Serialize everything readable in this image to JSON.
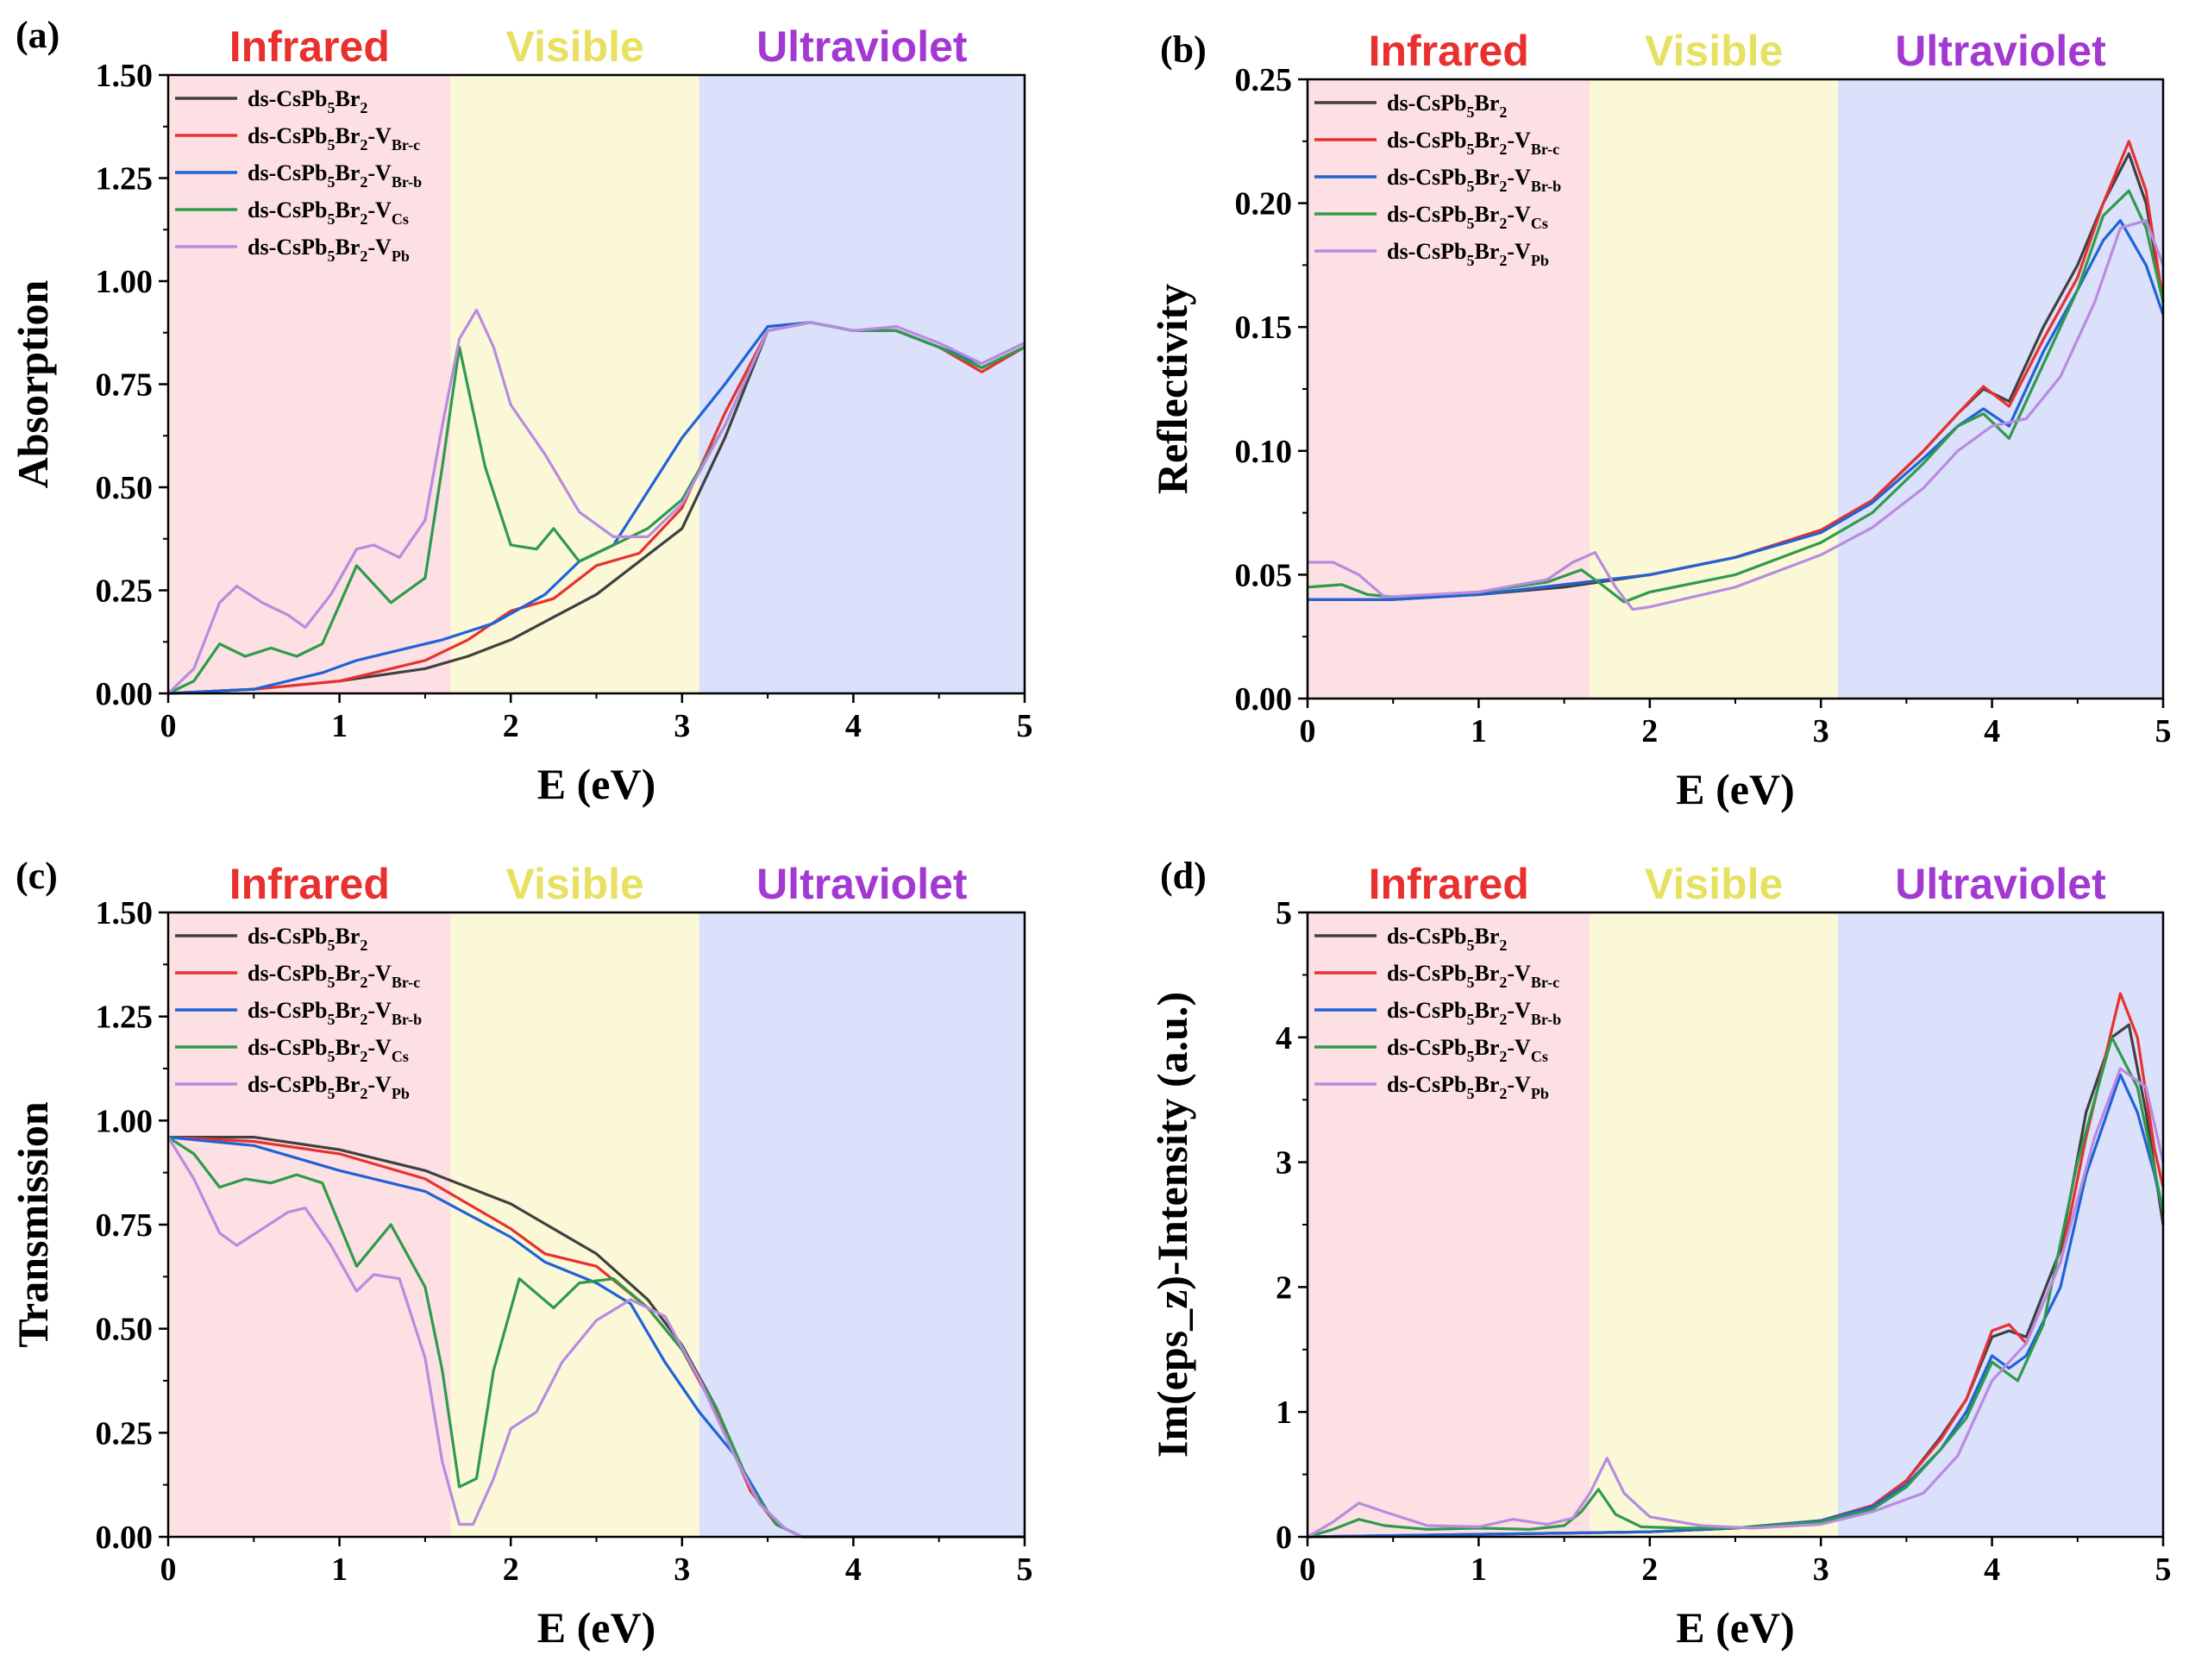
{
  "legend_entries": [
    {
      "base": "ds-CsPb",
      "s1": "5",
      "mid": "Br",
      "s2": "2",
      "dash": "",
      "v": "",
      "vsub": "",
      "color": "#404040"
    },
    {
      "base": "ds-CsPb",
      "s1": "5",
      "mid": "Br",
      "s2": "2",
      "dash": "-",
      "v": "V",
      "vsub": "Br-c",
      "color": "#e8312f"
    },
    {
      "base": "ds-CsPb",
      "s1": "5",
      "mid": "Br",
      "s2": "2",
      "dash": "-",
      "v": "V",
      "vsub": "Br-b",
      "color": "#1f63d6"
    },
    {
      "base": "ds-CsPb",
      "s1": "5",
      "mid": "Br",
      "s2": "2",
      "dash": "-",
      "v": "V",
      "vsub": "Cs",
      "color": "#2f9a4c"
    },
    {
      "base": "ds-CsPb",
      "s1": "5",
      "mid": "Br",
      "s2": "2",
      "dash": "-",
      "v": "V",
      "vsub": "Pb",
      "color": "#b98be0"
    }
  ],
  "regions": [
    {
      "label": "Infrared",
      "from": 0,
      "to": 1.65,
      "fill": "#fde0e3",
      "text_color": "#e8312f"
    },
    {
      "label": "Visible",
      "from": 1.65,
      "to": 3.1,
      "fill": "#fbf8d8",
      "text_color": "#e8e060"
    },
    {
      "label": "Ultraviolet",
      "from": 3.1,
      "to": 5,
      "fill": "#dbe0fb",
      "text_color": "#a338d2"
    }
  ],
  "chart_data": [
    {
      "panel": "(a)",
      "type": "line",
      "xlabel": "E (eV)",
      "ylabel": "Absorption",
      "xlim": [
        0,
        5
      ],
      "ylim": [
        0,
        1.5
      ],
      "xticks": [
        0,
        1,
        2,
        3,
        4,
        5
      ],
      "yticks": [
        "0.00",
        "0.25",
        "0.50",
        "0.75",
        "1.00",
        "1.25",
        "1.50"
      ],
      "legend_position": "top-left",
      "series": [
        {
          "x": [
            0,
            0.5,
            1.0,
            1.5,
            1.75,
            2.0,
            2.5,
            3.0,
            3.25,
            3.5,
            3.75,
            4.0,
            4.25,
            4.5,
            4.75,
            5.0
          ],
          "y": [
            0,
            0.01,
            0.03,
            0.06,
            0.09,
            0.13,
            0.24,
            0.4,
            0.62,
            0.88,
            0.9,
            0.88,
            0.88,
            0.84,
            0.79,
            0.84
          ]
        },
        {
          "x": [
            0,
            0.5,
            1.0,
            1.5,
            1.75,
            2.0,
            2.25,
            2.5,
            2.75,
            3.0,
            3.25,
            3.5,
            3.75,
            4.0,
            4.25,
            4.5,
            4.75,
            5.0
          ],
          "y": [
            0,
            0.01,
            0.03,
            0.08,
            0.13,
            0.2,
            0.23,
            0.31,
            0.34,
            0.45,
            0.68,
            0.88,
            0.9,
            0.88,
            0.88,
            0.84,
            0.78,
            0.84
          ]
        },
        {
          "x": [
            0,
            0.5,
            0.9,
            1.1,
            1.3,
            1.6,
            1.9,
            2.2,
            2.4,
            2.6,
            2.8,
            3.0,
            3.25,
            3.5,
            3.75,
            4.0,
            4.25,
            4.5,
            4.75,
            5.0
          ],
          "y": [
            0,
            0.01,
            0.05,
            0.08,
            0.1,
            0.13,
            0.17,
            0.24,
            0.32,
            0.36,
            0.49,
            0.62,
            0.75,
            0.89,
            0.9,
            0.88,
            0.88,
            0.84,
            0.8,
            0.85
          ]
        },
        {
          "x": [
            0,
            0.15,
            0.3,
            0.45,
            0.6,
            0.75,
            0.9,
            1.1,
            1.3,
            1.5,
            1.6,
            1.7,
            1.85,
            2.0,
            2.15,
            2.25,
            2.4,
            2.6,
            2.8,
            3.0,
            3.25,
            3.5,
            3.75,
            4.0,
            4.25,
            4.5,
            4.75,
            5.0
          ],
          "y": [
            0,
            0.03,
            0.12,
            0.09,
            0.11,
            0.09,
            0.12,
            0.31,
            0.22,
            0.28,
            0.55,
            0.84,
            0.55,
            0.36,
            0.35,
            0.4,
            0.32,
            0.36,
            0.4,
            0.47,
            0.65,
            0.88,
            0.9,
            0.88,
            0.88,
            0.84,
            0.79,
            0.84
          ]
        },
        {
          "x": [
            0,
            0.15,
            0.3,
            0.4,
            0.55,
            0.7,
            0.8,
            0.95,
            1.1,
            1.2,
            1.35,
            1.5,
            1.6,
            1.7,
            1.8,
            1.9,
            2.0,
            2.2,
            2.4,
            2.6,
            2.8,
            3.0,
            3.25,
            3.5,
            3.75,
            4.0,
            4.25,
            4.5,
            4.75,
            5.0
          ],
          "y": [
            0,
            0.06,
            0.22,
            0.26,
            0.22,
            0.19,
            0.16,
            0.24,
            0.35,
            0.36,
            0.33,
            0.42,
            0.65,
            0.86,
            0.93,
            0.84,
            0.7,
            0.58,
            0.44,
            0.38,
            0.38,
            0.46,
            0.65,
            0.88,
            0.9,
            0.88,
            0.89,
            0.85,
            0.8,
            0.85
          ]
        }
      ]
    },
    {
      "panel": "(b)",
      "type": "line",
      "xlabel": "E (eV)",
      "ylabel": "Reflectivity",
      "xlim": [
        0,
        5
      ],
      "ylim": [
        0,
        0.25
      ],
      "xticks": [
        0,
        1,
        2,
        3,
        4,
        5
      ],
      "yticks": [
        "0.00",
        "0.05",
        "0.10",
        "0.15",
        "0.20",
        "0.25"
      ],
      "legend_position": "top-left",
      "series": [
        {
          "x": [
            0,
            0.5,
            1.0,
            1.5,
            2.0,
            2.5,
            3.0,
            3.3,
            3.6,
            3.8,
            3.95,
            4.1,
            4.3,
            4.5,
            4.65,
            4.8,
            4.9,
            5.0
          ],
          "y": [
            0.04,
            0.04,
            0.042,
            0.045,
            0.05,
            0.057,
            0.068,
            0.08,
            0.1,
            0.115,
            0.125,
            0.12,
            0.15,
            0.175,
            0.2,
            0.22,
            0.2,
            0.16
          ]
        },
        {
          "x": [
            0,
            0.5,
            1.0,
            1.5,
            2.0,
            2.5,
            3.0,
            3.3,
            3.6,
            3.8,
            3.95,
            4.1,
            4.3,
            4.5,
            4.65,
            4.8,
            4.9,
            5.0
          ],
          "y": [
            0.04,
            0.04,
            0.042,
            0.046,
            0.05,
            0.057,
            0.068,
            0.08,
            0.1,
            0.115,
            0.126,
            0.118,
            0.145,
            0.17,
            0.2,
            0.225,
            0.205,
            0.16
          ]
        },
        {
          "x": [
            0,
            0.5,
            1.0,
            1.5,
            2.0,
            2.5,
            3.0,
            3.3,
            3.6,
            3.8,
            3.95,
            4.1,
            4.3,
            4.5,
            4.65,
            4.75,
            4.9,
            5.0
          ],
          "y": [
            0.04,
            0.04,
            0.042,
            0.046,
            0.05,
            0.057,
            0.067,
            0.079,
            0.097,
            0.11,
            0.117,
            0.11,
            0.14,
            0.165,
            0.185,
            0.193,
            0.175,
            0.155
          ]
        },
        {
          "x": [
            0,
            0.2,
            0.35,
            0.5,
            1.0,
            1.4,
            1.6,
            1.7,
            1.85,
            2.0,
            2.5,
            3.0,
            3.3,
            3.6,
            3.8,
            3.95,
            4.1,
            4.3,
            4.5,
            4.65,
            4.8,
            4.9,
            5.0
          ],
          "y": [
            0.045,
            0.046,
            0.042,
            0.041,
            0.043,
            0.047,
            0.052,
            0.047,
            0.039,
            0.043,
            0.05,
            0.063,
            0.075,
            0.095,
            0.11,
            0.115,
            0.105,
            0.135,
            0.165,
            0.195,
            0.205,
            0.19,
            0.16
          ]
        },
        {
          "x": [
            0,
            0.15,
            0.3,
            0.45,
            1.0,
            1.4,
            1.55,
            1.68,
            1.8,
            1.9,
            2.0,
            2.5,
            3.0,
            3.3,
            3.6,
            3.8,
            4.0,
            4.2,
            4.4,
            4.6,
            4.75,
            4.9,
            5.0
          ],
          "y": [
            0.055,
            0.055,
            0.05,
            0.041,
            0.043,
            0.048,
            0.055,
            0.059,
            0.045,
            0.036,
            0.037,
            0.045,
            0.058,
            0.069,
            0.085,
            0.1,
            0.11,
            0.113,
            0.13,
            0.16,
            0.19,
            0.193,
            0.175
          ]
        }
      ]
    },
    {
      "panel": "(c)",
      "type": "line",
      "xlabel": "E (eV)",
      "ylabel": "Transmission",
      "xlim": [
        0,
        5
      ],
      "ylim": [
        0,
        1.5
      ],
      "xticks": [
        0,
        1,
        2,
        3,
        4,
        5
      ],
      "yticks": [
        "0.00",
        "0.25",
        "0.50",
        "0.75",
        "1.00",
        "1.25",
        "1.50"
      ],
      "legend_position": "top-left",
      "series": [
        {
          "x": [
            0,
            0.5,
            1.0,
            1.5,
            2.0,
            2.5,
            2.8,
            3.0,
            3.2,
            3.4,
            3.55,
            3.7,
            4.0,
            5.0
          ],
          "y": [
            0.96,
            0.96,
            0.93,
            0.88,
            0.8,
            0.68,
            0.57,
            0.46,
            0.31,
            0.12,
            0.03,
            0.0,
            0.0,
            0.0
          ]
        },
        {
          "x": [
            0,
            0.5,
            1.0,
            1.5,
            2.0,
            2.2,
            2.5,
            2.8,
            3.0,
            3.2,
            3.4,
            3.55,
            3.7,
            4.0,
            5.0
          ],
          "y": [
            0.96,
            0.95,
            0.92,
            0.86,
            0.74,
            0.68,
            0.65,
            0.55,
            0.45,
            0.3,
            0.11,
            0.03,
            0.0,
            0.0,
            0.0
          ]
        },
        {
          "x": [
            0,
            0.5,
            1.0,
            1.5,
            2.0,
            2.2,
            2.5,
            2.7,
            2.9,
            3.1,
            3.3,
            3.5,
            3.6,
            3.7,
            4.0,
            5.0
          ],
          "y": [
            0.96,
            0.94,
            0.88,
            0.83,
            0.72,
            0.66,
            0.61,
            0.56,
            0.42,
            0.3,
            0.2,
            0.06,
            0.02,
            0.0,
            0.0,
            0.0
          ]
        },
        {
          "x": [
            0,
            0.15,
            0.3,
            0.45,
            0.6,
            0.75,
            0.9,
            1.1,
            1.3,
            1.5,
            1.6,
            1.7,
            1.8,
            1.9,
            2.05,
            2.25,
            2.4,
            2.6,
            2.8,
            3.0,
            3.2,
            3.4,
            3.55,
            3.7,
            4.0,
            5.0
          ],
          "y": [
            0.96,
            0.92,
            0.84,
            0.86,
            0.85,
            0.87,
            0.85,
            0.65,
            0.75,
            0.6,
            0.4,
            0.12,
            0.14,
            0.4,
            0.62,
            0.55,
            0.61,
            0.62,
            0.55,
            0.45,
            0.31,
            0.12,
            0.03,
            0.0,
            0.0,
            0.0
          ]
        },
        {
          "x": [
            0,
            0.15,
            0.3,
            0.4,
            0.55,
            0.7,
            0.8,
            0.95,
            1.1,
            1.2,
            1.35,
            1.5,
            1.6,
            1.7,
            1.78,
            1.9,
            2.0,
            2.15,
            2.3,
            2.5,
            2.7,
            2.9,
            3.1,
            3.3,
            3.45,
            3.6,
            3.7,
            4.0,
            5.0
          ],
          "y": [
            0.96,
            0.86,
            0.73,
            0.7,
            0.74,
            0.78,
            0.79,
            0.7,
            0.59,
            0.63,
            0.62,
            0.43,
            0.18,
            0.03,
            0.03,
            0.14,
            0.26,
            0.3,
            0.42,
            0.52,
            0.57,
            0.53,
            0.38,
            0.2,
            0.08,
            0.02,
            0.0,
            0.0,
            0.0
          ]
        }
      ]
    },
    {
      "panel": "(d)",
      "type": "line",
      "xlabel": "E (eV)",
      "ylabel": "Im(eps_z)-Intensity (a.u.)",
      "xlim": [
        0,
        5
      ],
      "ylim": [
        0,
        5
      ],
      "xticks": [
        0,
        1,
        2,
        3,
        4,
        5
      ],
      "yticks": [
        "0",
        "1",
        "2",
        "3",
        "4",
        "5"
      ],
      "legend_position": "top-left",
      "series": [
        {
          "x": [
            0,
            0.5,
            1.0,
            1.5,
            2.0,
            2.5,
            3.0,
            3.3,
            3.5,
            3.7,
            3.85,
            4.0,
            4.1,
            4.2,
            4.4,
            4.55,
            4.7,
            4.8,
            4.9,
            5.0
          ],
          "y": [
            0,
            0.01,
            0.02,
            0.03,
            0.04,
            0.07,
            0.13,
            0.25,
            0.45,
            0.8,
            1.1,
            1.6,
            1.65,
            1.6,
            2.3,
            3.4,
            4.0,
            4.1,
            3.4,
            2.5
          ]
        },
        {
          "x": [
            0,
            0.5,
            1.0,
            1.5,
            2.0,
            2.5,
            3.0,
            3.3,
            3.5,
            3.7,
            3.85,
            4.0,
            4.1,
            4.2,
            4.4,
            4.55,
            4.75,
            4.85,
            4.95,
            5.0
          ],
          "y": [
            0,
            0.01,
            0.02,
            0.03,
            0.04,
            0.07,
            0.13,
            0.25,
            0.45,
            0.78,
            1.1,
            1.65,
            1.7,
            1.55,
            2.2,
            3.2,
            4.35,
            4.0,
            3.1,
            2.8
          ]
        },
        {
          "x": [
            0,
            0.5,
            1.0,
            1.5,
            2.0,
            2.5,
            3.0,
            3.3,
            3.5,
            3.7,
            3.85,
            4.0,
            4.1,
            4.2,
            4.4,
            4.55,
            4.75,
            4.85,
            4.95,
            5.0
          ],
          "y": [
            0,
            0.01,
            0.02,
            0.03,
            0.04,
            0.07,
            0.13,
            0.24,
            0.42,
            0.7,
            1.0,
            1.45,
            1.35,
            1.45,
            2.0,
            2.9,
            3.7,
            3.4,
            2.9,
            2.6
          ]
        },
        {
          "x": [
            0,
            0.15,
            0.3,
            0.45,
            0.7,
            1.0,
            1.3,
            1.5,
            1.6,
            1.7,
            1.8,
            1.95,
            2.2,
            2.5,
            3.0,
            3.3,
            3.5,
            3.7,
            3.85,
            4.0,
            4.15,
            4.3,
            4.5,
            4.7,
            4.85,
            5.0
          ],
          "y": [
            0,
            0.06,
            0.14,
            0.09,
            0.06,
            0.07,
            0.06,
            0.09,
            0.2,
            0.38,
            0.18,
            0.08,
            0.07,
            0.07,
            0.12,
            0.22,
            0.4,
            0.7,
            0.95,
            1.4,
            1.25,
            1.7,
            3.0,
            4.0,
            3.6,
            2.6
          ]
        },
        {
          "x": [
            0,
            0.15,
            0.3,
            0.45,
            0.7,
            1.0,
            1.2,
            1.4,
            1.55,
            1.65,
            1.75,
            1.85,
            2.0,
            2.3,
            2.6,
            3.0,
            3.3,
            3.6,
            3.8,
            4.0,
            4.2,
            4.4,
            4.6,
            4.75,
            4.9,
            5.0
          ],
          "y": [
            0,
            0.12,
            0.27,
            0.2,
            0.09,
            0.08,
            0.14,
            0.1,
            0.15,
            0.35,
            0.63,
            0.35,
            0.16,
            0.09,
            0.07,
            0.1,
            0.2,
            0.35,
            0.65,
            1.25,
            1.55,
            2.2,
            3.2,
            3.75,
            3.6,
            3.0
          ]
        }
      ]
    }
  ]
}
